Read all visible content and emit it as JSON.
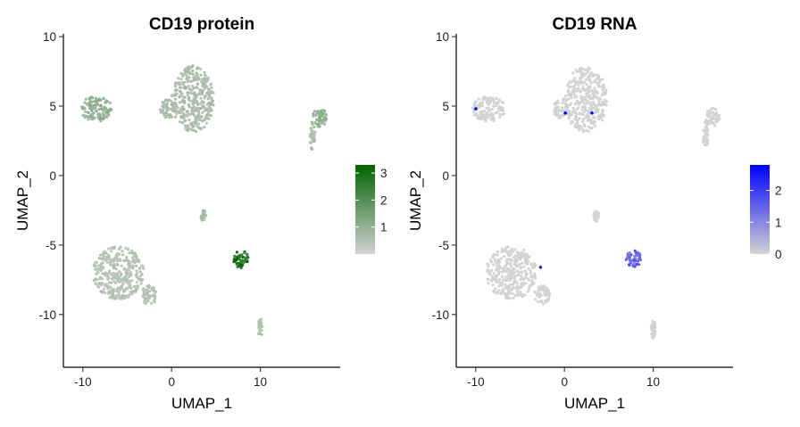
{
  "chart_data": [
    {
      "type": "scatter",
      "title": "CD19 protein",
      "xlabel": "UMAP_1",
      "ylabel": "UMAP_2",
      "xlim": [
        -12.2,
        19.0
      ],
      "ylim": [
        -13.8,
        10.2
      ],
      "xticks": [
        -10,
        0,
        10
      ],
      "yticks": [
        10,
        5,
        0,
        -5,
        -10
      ],
      "grid": false,
      "legend": {
        "position": "right",
        "kind": "color-gradient",
        "ticks": [
          3,
          2,
          1
        ],
        "range": [
          0,
          3.3
        ],
        "colors": [
          "#d3d3d3",
          "#006400"
        ]
      },
      "clusters": [
        {
          "name": "upper-left",
          "cx": -8.5,
          "cy": 4.8,
          "rx": 1.9,
          "ry": 0.9,
          "value": 0.95
        },
        {
          "name": "upper-center",
          "cx": 2.4,
          "cy": 5.5,
          "rx": 2.4,
          "ry": 2.4,
          "value": 0.6
        },
        {
          "name": "upper-center-tail",
          "cx": -0.4,
          "cy": 4.8,
          "rx": 0.9,
          "ry": 0.7,
          "value": 0.6
        },
        {
          "name": "upper-right",
          "cx": 16.7,
          "cy": 4.2,
          "rx": 0.8,
          "ry": 0.7,
          "value": 1.0
        },
        {
          "name": "upper-right-strand",
          "cx": 15.9,
          "cy": 2.8,
          "rx": 0.3,
          "ry": 1.1,
          "value": 0.6
        },
        {
          "name": "lower-left",
          "cx": -6.0,
          "cy": -7.0,
          "rx": 2.9,
          "ry": 1.9,
          "value": 0.45
        },
        {
          "name": "lower-left-arm",
          "cx": -2.5,
          "cy": -8.6,
          "rx": 0.9,
          "ry": 0.7,
          "value": 0.45
        },
        {
          "name": "lower-right",
          "cx": 7.8,
          "cy": -6.0,
          "rx": 0.85,
          "ry": 0.65,
          "value": 3.0
        },
        {
          "name": "small-mid",
          "cx": 3.6,
          "cy": -2.9,
          "rx": 0.3,
          "ry": 0.4,
          "value": 0.6
        },
        {
          "name": "small-tail",
          "cx": 10.0,
          "cy": -11.0,
          "rx": 0.25,
          "ry": 0.7,
          "value": 0.5
        }
      ]
    },
    {
      "type": "scatter",
      "title": "CD19 RNA",
      "xlabel": "UMAP_1",
      "ylabel": "UMAP_2",
      "xlim": [
        -12.2,
        19.0
      ],
      "ylim": [
        -13.8,
        10.2
      ],
      "xticks": [
        -10,
        0,
        10
      ],
      "yticks": [
        10,
        5,
        0,
        -5,
        -10
      ],
      "grid": false,
      "legend": {
        "position": "right",
        "kind": "color-gradient",
        "ticks": [
          2,
          1,
          0
        ],
        "range": [
          0,
          2.8
        ],
        "colors": [
          "#d3d3d3",
          "#0000ff"
        ]
      },
      "clusters": [
        {
          "name": "upper-left",
          "cx": -8.5,
          "cy": 4.8,
          "rx": 1.9,
          "ry": 0.9,
          "value": 0
        },
        {
          "name": "upper-center",
          "cx": 2.4,
          "cy": 5.5,
          "rx": 2.4,
          "ry": 2.4,
          "value": 0
        },
        {
          "name": "upper-center-tail",
          "cx": -0.4,
          "cy": 4.8,
          "rx": 0.9,
          "ry": 0.7,
          "value": 0
        },
        {
          "name": "upper-right",
          "cx": 16.7,
          "cy": 4.2,
          "rx": 0.8,
          "ry": 0.7,
          "value": 0
        },
        {
          "name": "upper-right-strand",
          "cx": 15.9,
          "cy": 2.8,
          "rx": 0.3,
          "ry": 1.1,
          "value": 0
        },
        {
          "name": "lower-left",
          "cx": -6.0,
          "cy": -7.0,
          "rx": 2.9,
          "ry": 1.9,
          "value": 0
        },
        {
          "name": "lower-left-arm",
          "cx": -2.5,
          "cy": -8.6,
          "rx": 0.9,
          "ry": 0.7,
          "value": 0
        },
        {
          "name": "lower-right",
          "cx": 7.8,
          "cy": -6.0,
          "rx": 0.85,
          "ry": 0.65,
          "value": 1.4
        },
        {
          "name": "small-mid",
          "cx": 3.6,
          "cy": -2.9,
          "rx": 0.3,
          "ry": 0.4,
          "value": 0
        },
        {
          "name": "small-tail",
          "cx": 10.0,
          "cy": -11.0,
          "rx": 0.25,
          "ry": 0.7,
          "value": 0
        }
      ],
      "highlight_points": [
        {
          "x": -10.0,
          "y": 4.8,
          "value": 2.8
        },
        {
          "x": 0.1,
          "y": 4.5,
          "value": 2.8
        },
        {
          "x": 3.1,
          "y": 4.5,
          "value": 2.8
        },
        {
          "x": -2.7,
          "y": -6.6,
          "value": 2.4
        }
      ]
    }
  ]
}
